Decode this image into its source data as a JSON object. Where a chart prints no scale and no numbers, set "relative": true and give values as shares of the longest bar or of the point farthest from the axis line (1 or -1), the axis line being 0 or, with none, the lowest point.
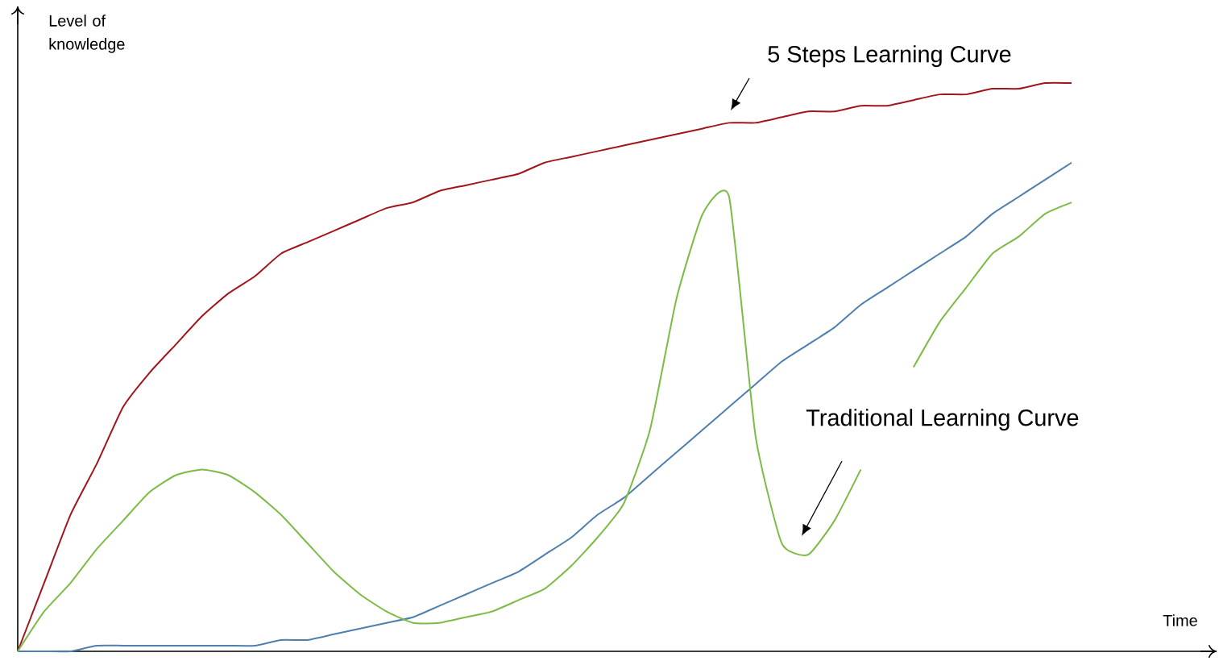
{
  "chart_data": {
    "type": "line",
    "relative": true,
    "xlabel": "Time",
    "ylabel": "Level of knowledge",
    "categories": [
      null,
      null,
      null,
      null,
      null,
      null,
      null,
      null,
      null,
      null,
      null,
      null,
      null,
      null,
      null,
      null,
      null,
      null,
      null,
      null,
      null,
      null,
      null,
      null,
      null,
      null,
      null,
      null,
      null,
      null,
      null,
      null,
      null,
      null,
      null,
      null,
      null,
      null,
      null,
      null,
      null
    ],
    "series": [
      {
        "name": "5 Steps Learning Curve",
        "color": "#a0161c",
        "values": [
          0,
          0.12,
          0.24,
          0.33,
          0.43,
          0.49,
          0.54,
          0.59,
          0.63,
          0.66,
          0.7,
          0.72,
          0.74,
          0.76,
          0.78,
          0.79,
          0.81,
          0.82,
          0.83,
          0.84,
          0.86,
          0.87,
          0.88,
          0.89,
          0.9,
          0.91,
          0.92,
          0.93,
          0.93,
          0.94,
          0.95,
          0.95,
          0.96,
          0.96,
          0.97,
          0.98,
          0.98,
          0.99,
          0.99,
          1.0,
          1.0
        ]
      },
      {
        "color": "#4f7fae",
        "values": [
          0,
          0,
          0,
          0.01,
          0.01,
          0.01,
          0.01,
          0.01,
          0.01,
          0.01,
          0.02,
          0.02,
          0.03,
          0.04,
          0.05,
          0.06,
          0.08,
          0.1,
          0.12,
          0.14,
          0.17,
          0.2,
          0.24,
          0.27,
          0.31,
          0.35,
          0.39,
          0.43,
          0.47,
          0.51,
          0.54,
          0.57,
          0.61,
          0.64,
          0.67,
          0.7,
          0.73,
          0.77,
          0.8,
          0.83,
          0.86
        ]
      },
      {
        "name": "Traditional Learning Curve",
        "color": "#7cbb45",
        "values": [
          0,
          0.07,
          0.12,
          0.18,
          0.23,
          0.28,
          0.31,
          0.32,
          0.31,
          0.28,
          0.24,
          0.19,
          0.14,
          0.1,
          0.07,
          0.05,
          0.05,
          0.06,
          0.07,
          0.09,
          0.11,
          0.15,
          0.2,
          0.26,
          0.39,
          0.62,
          0.77,
          0.8,
          0.38,
          0.19,
          0.17,
          0.23,
          0.32,
          null,
          0.5,
          0.58,
          0.64,
          0.7,
          0.73,
          0.77,
          0.79
        ]
      }
    ]
  }
}
